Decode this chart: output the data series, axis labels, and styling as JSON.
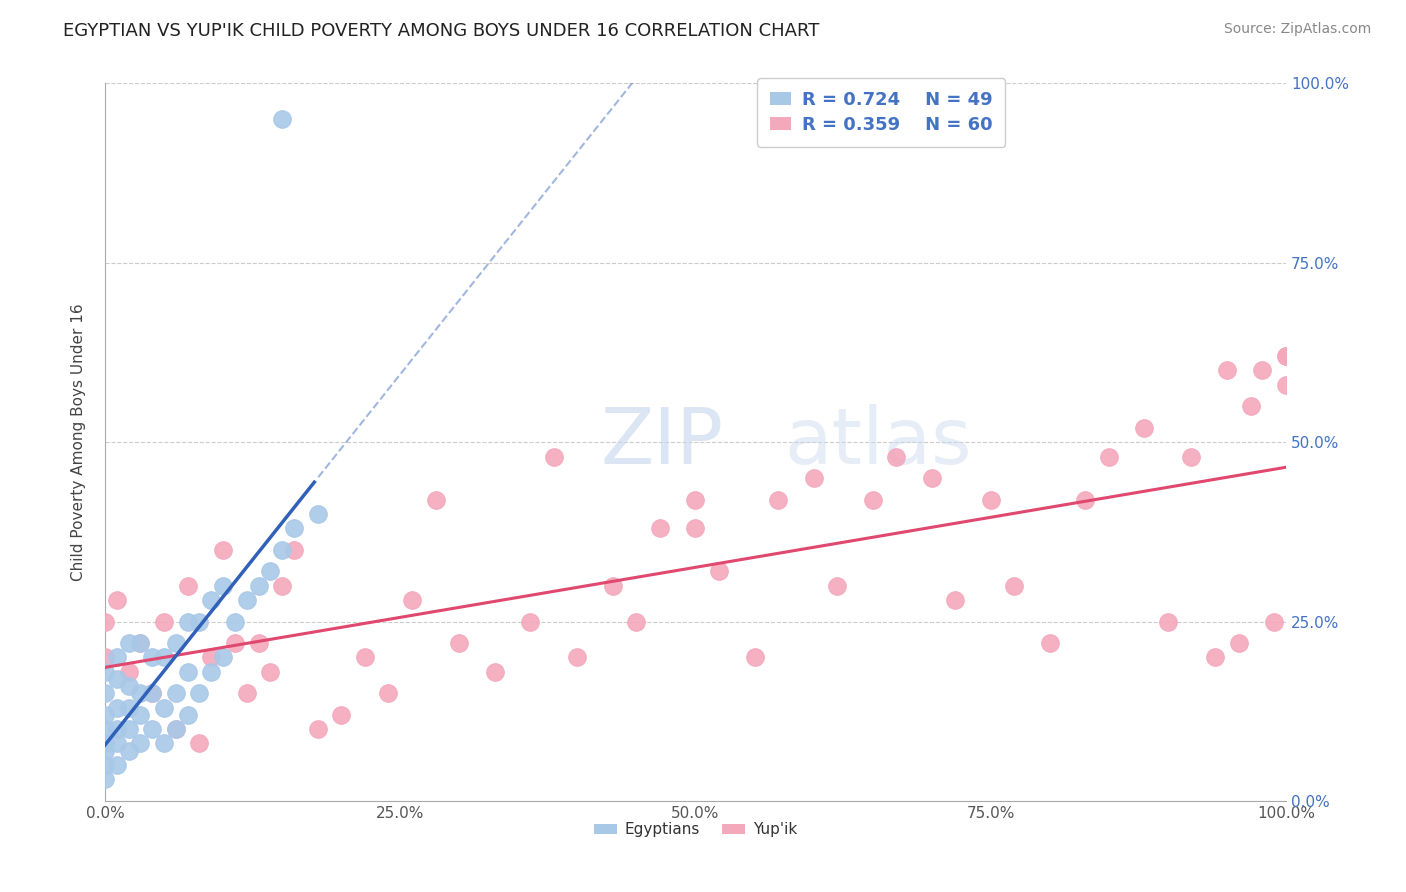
{
  "title": "EGYPTIAN VS YUP'IK CHILD POVERTY AMONG BOYS UNDER 16 CORRELATION CHART",
  "source": "Source: ZipAtlas.com",
  "ylabel": "Child Poverty Among Boys Under 16",
  "xlabel_ticks": [
    "0.0%",
    "25.0%",
    "50.0%",
    "75.0%",
    "100.0%"
  ],
  "ylabel_ticks": [
    "0.0%",
    "25.0%",
    "50.0%",
    "75.0%",
    "100.0%"
  ],
  "legend_r_egyptian": "R = 0.724",
  "legend_n_egyptian": "N = 49",
  "legend_r_yupik": "R = 0.359",
  "legend_n_yupik": "N = 60",
  "egyptian_color": "#a8c8e8",
  "yupik_color": "#f4a8bc",
  "egyptian_line_color": "#3060b8",
  "yupik_line_color": "#e04870",
  "watermark_zip": "ZIP",
  "watermark_atlas": "atlas",
  "background_color": "#ffffff",
  "grid_color": "#cccccc",
  "egyptian_x": [
    0.0,
    0.0,
    0.0,
    0.0,
    0.0,
    0.0,
    0.0,
    0.0,
    0.01,
    0.01,
    0.01,
    0.01,
    0.01,
    0.01,
    0.02,
    0.02,
    0.02,
    0.02,
    0.02,
    0.03,
    0.03,
    0.03,
    0.03,
    0.04,
    0.04,
    0.04,
    0.05,
    0.05,
    0.05,
    0.06,
    0.06,
    0.06,
    0.07,
    0.07,
    0.07,
    0.08,
    0.08,
    0.09,
    0.09,
    0.1,
    0.1,
    0.11,
    0.12,
    0.13,
    0.14,
    0.15,
    0.16,
    0.18,
    0.15
  ],
  "egyptian_y": [
    0.03,
    0.05,
    0.07,
    0.08,
    0.1,
    0.12,
    0.15,
    0.18,
    0.05,
    0.08,
    0.1,
    0.13,
    0.17,
    0.2,
    0.07,
    0.1,
    0.13,
    0.16,
    0.22,
    0.08,
    0.12,
    0.15,
    0.22,
    0.1,
    0.15,
    0.2,
    0.08,
    0.13,
    0.2,
    0.1,
    0.15,
    0.22,
    0.12,
    0.18,
    0.25,
    0.15,
    0.25,
    0.18,
    0.28,
    0.2,
    0.3,
    0.25,
    0.28,
    0.3,
    0.32,
    0.35,
    0.38,
    0.4,
    0.95
  ],
  "yupik_x": [
    0.0,
    0.0,
    0.01,
    0.02,
    0.03,
    0.04,
    0.05,
    0.06,
    0.07,
    0.08,
    0.09,
    0.1,
    0.11,
    0.12,
    0.13,
    0.14,
    0.15,
    0.16,
    0.18,
    0.2,
    0.22,
    0.24,
    0.26,
    0.28,
    0.3,
    0.33,
    0.36,
    0.38,
    0.4,
    0.43,
    0.45,
    0.47,
    0.5,
    0.5,
    0.52,
    0.55,
    0.57,
    0.6,
    0.62,
    0.65,
    0.67,
    0.7,
    0.72,
    0.75,
    0.77,
    0.8,
    0.83,
    0.85,
    0.88,
    0.9,
    0.92,
    0.94,
    0.95,
    0.96,
    0.97,
    0.98,
    0.99,
    1.0,
    1.0,
    1.0
  ],
  "yupik_y": [
    0.2,
    0.25,
    0.28,
    0.18,
    0.22,
    0.15,
    0.25,
    0.1,
    0.3,
    0.08,
    0.2,
    0.35,
    0.22,
    0.15,
    0.22,
    0.18,
    0.3,
    0.35,
    0.1,
    0.12,
    0.2,
    0.15,
    0.28,
    0.42,
    0.22,
    0.18,
    0.25,
    0.48,
    0.2,
    0.3,
    0.25,
    0.38,
    0.38,
    0.42,
    0.32,
    0.2,
    0.42,
    0.45,
    0.3,
    0.42,
    0.48,
    0.45,
    0.28,
    0.42,
    0.3,
    0.22,
    0.42,
    0.48,
    0.52,
    0.25,
    0.48,
    0.2,
    0.6,
    0.22,
    0.55,
    0.6,
    0.25,
    0.62,
    0.58,
    0.62
  ],
  "xlim": [
    0.0,
    1.0
  ],
  "ylim": [
    0.0,
    1.0
  ]
}
